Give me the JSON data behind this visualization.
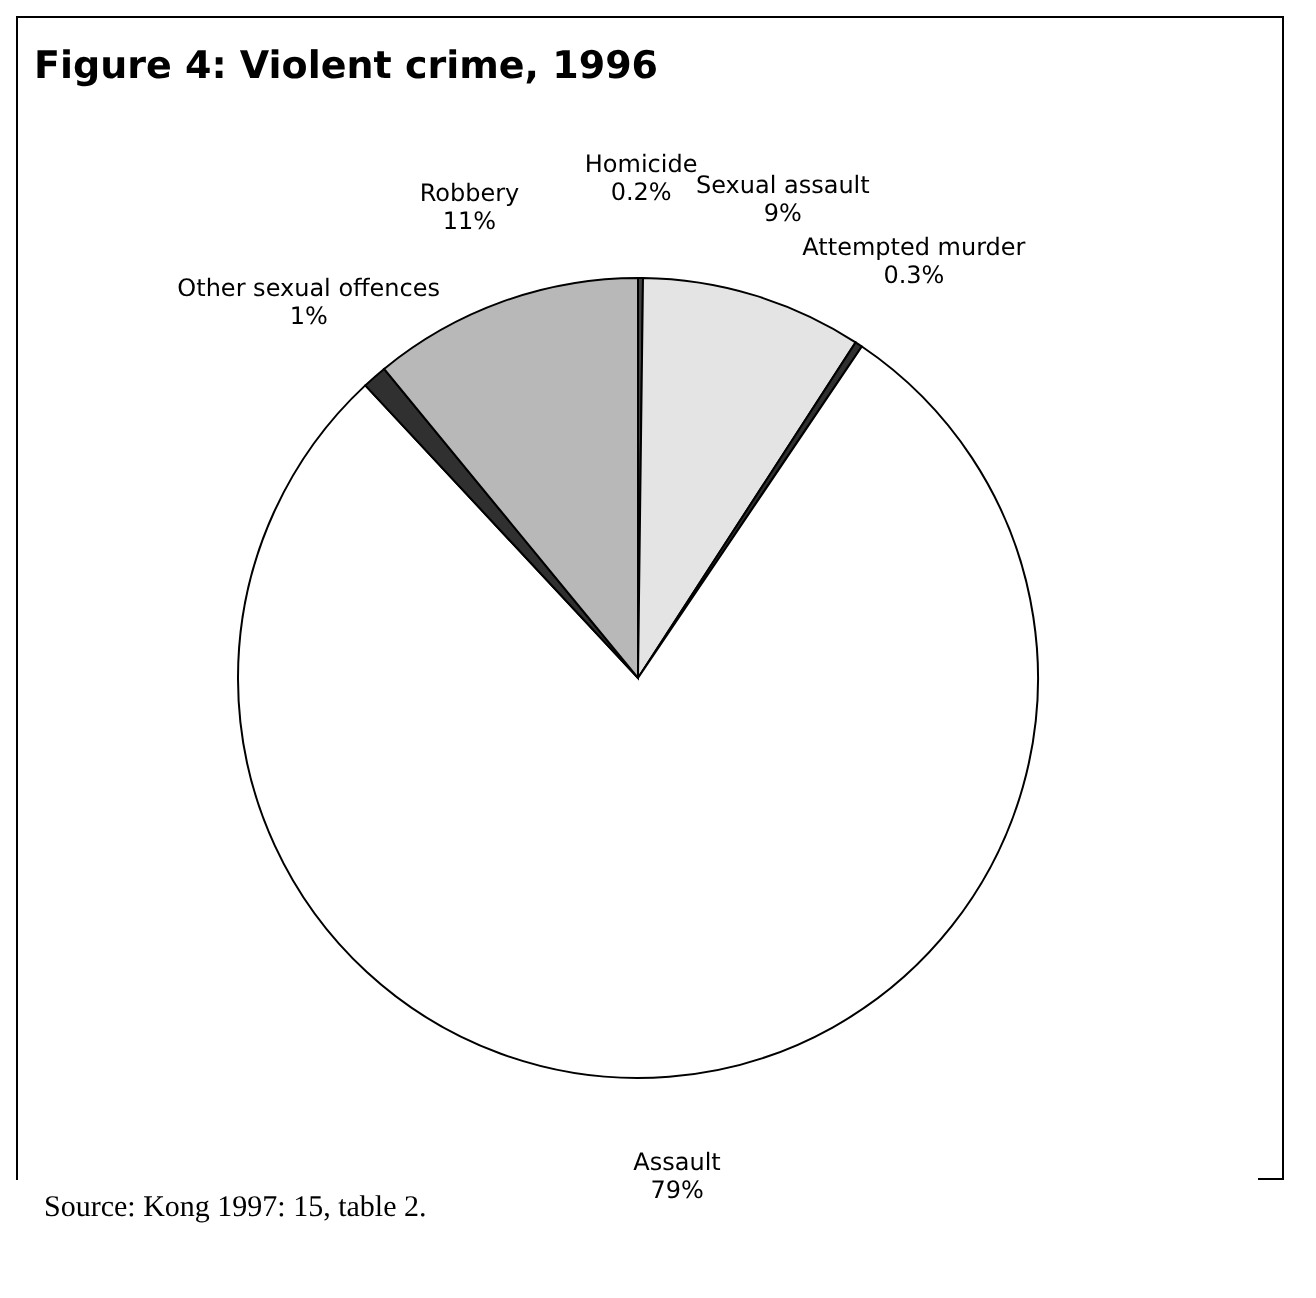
{
  "chart_data": {
    "type": "pie",
    "title": "Figure 4:  Violent crime, 1996",
    "categories": [
      "Homicide",
      "Sexual assault",
      "Attempted murder",
      "Assault",
      "Other sexual offences",
      "Robbery"
    ],
    "values": [
      0.2,
      9,
      0.3,
      79,
      1,
      11
    ],
    "value_labels": [
      "0.2%",
      "9%",
      "0.3%",
      "79%",
      "1%",
      "11%"
    ],
    "colors": [
      "#404040",
      "#e4e4e4",
      "#303030",
      "#ffffff",
      "#303030",
      "#b8b8b8"
    ],
    "legend": false,
    "annotations": [
      "Source: Kong 1997: 15, table 2."
    ]
  }
}
